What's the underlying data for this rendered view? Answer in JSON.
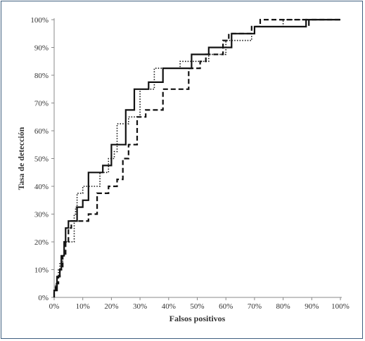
{
  "chart_data": {
    "type": "line",
    "title": "",
    "xlabel": "Falsos positivos",
    "ylabel": "Tasa de detección",
    "xlim": [
      0,
      100
    ],
    "ylim": [
      0,
      100
    ],
    "x_tick_labels": [
      "0%",
      "10%",
      "20%",
      "30%",
      "40%",
      "50%",
      "60%",
      "70%",
      "80%",
      "90%",
      "100%"
    ],
    "y_tick_labels": [
      "0%",
      "10%",
      "20%",
      "30%",
      "40%",
      "50%",
      "60%",
      "70%",
      "80%",
      "90%",
      "100%"
    ],
    "grid": false,
    "legend": "none",
    "series": [
      {
        "style": "solid",
        "points": [
          [
            0,
            0
          ],
          [
            0,
            2.5
          ],
          [
            1,
            2.5
          ],
          [
            1,
            5
          ],
          [
            1,
            7.5
          ],
          [
            2,
            7.5
          ],
          [
            2,
            10
          ],
          [
            2.5,
            10
          ],
          [
            2.5,
            12.5
          ],
          [
            2.5,
            15
          ],
          [
            3.5,
            15
          ],
          [
            3.5,
            17.5
          ],
          [
            3.5,
            20
          ],
          [
            4,
            20
          ],
          [
            4,
            22.5
          ],
          [
            4,
            25
          ],
          [
            5,
            25
          ],
          [
            5,
            27.5
          ],
          [
            8,
            27.5
          ],
          [
            8,
            30
          ],
          [
            8,
            32.5
          ],
          [
            10,
            32.5
          ],
          [
            10,
            35
          ],
          [
            12,
            35
          ],
          [
            12,
            37.5
          ],
          [
            12,
            40
          ],
          [
            12,
            42.5
          ],
          [
            12,
            45
          ],
          [
            17,
            45
          ],
          [
            17,
            47.5
          ],
          [
            20,
            47.5
          ],
          [
            20,
            50
          ],
          [
            20,
            52.5
          ],
          [
            20,
            55
          ],
          [
            25,
            55
          ],
          [
            25,
            57.5
          ],
          [
            25,
            60
          ],
          [
            25,
            62.5
          ],
          [
            25,
            65
          ],
          [
            25,
            67.5
          ],
          [
            28,
            67.5
          ],
          [
            28,
            70
          ],
          [
            28,
            72.5
          ],
          [
            28,
            75
          ],
          [
            33,
            75
          ],
          [
            33,
            77.5
          ],
          [
            35,
            77.5
          ],
          [
            38,
            77.5
          ],
          [
            38,
            80
          ],
          [
            38,
            82.5
          ],
          [
            48,
            82.5
          ],
          [
            48,
            85
          ],
          [
            48,
            87.5
          ],
          [
            54,
            87.5
          ],
          [
            54,
            90
          ],
          [
            58,
            90
          ],
          [
            62,
            90
          ],
          [
            62,
            92.5
          ],
          [
            62,
            95
          ],
          [
            70,
            95
          ],
          [
            70,
            97.5
          ],
          [
            88,
            97.5
          ],
          [
            88,
            100
          ],
          [
            100,
            100
          ]
        ]
      },
      {
        "style": "dotted",
        "points": [
          [
            0,
            0
          ],
          [
            0,
            2.5
          ],
          [
            0.5,
            2.5
          ],
          [
            0.5,
            5
          ],
          [
            1,
            5
          ],
          [
            1,
            7.5
          ],
          [
            1.5,
            7.5
          ],
          [
            1.5,
            10
          ],
          [
            2,
            10
          ],
          [
            2,
            12.5
          ],
          [
            3,
            12.5
          ],
          [
            3,
            15
          ],
          [
            3.5,
            15
          ],
          [
            3.5,
            17.5
          ],
          [
            3.5,
            20
          ],
          [
            7,
            20
          ],
          [
            7,
            22.5
          ],
          [
            7,
            25
          ],
          [
            7,
            27.5
          ],
          [
            7,
            30
          ],
          [
            7.5,
            30
          ],
          [
            7.5,
            32.5
          ],
          [
            8,
            32.5
          ],
          [
            8,
            35
          ],
          [
            8,
            37.5
          ],
          [
            10,
            37.5
          ],
          [
            10,
            40
          ],
          [
            16,
            40
          ],
          [
            16,
            42.5
          ],
          [
            16,
            45
          ],
          [
            19,
            45
          ],
          [
            19,
            47.5
          ],
          [
            19,
            50
          ],
          [
            21,
            50
          ],
          [
            21,
            52.5
          ],
          [
            22,
            52.5
          ],
          [
            22,
            55
          ],
          [
            22,
            57.5
          ],
          [
            22,
            60
          ],
          [
            22,
            62.5
          ],
          [
            26,
            62.5
          ],
          [
            26,
            65
          ],
          [
            30,
            65
          ],
          [
            30,
            67.5
          ],
          [
            30,
            70
          ],
          [
            30,
            72.5
          ],
          [
            30,
            75
          ],
          [
            35,
            75
          ],
          [
            35,
            77.5
          ],
          [
            35,
            80
          ],
          [
            35,
            82.5
          ],
          [
            44,
            82.5
          ],
          [
            44,
            85
          ],
          [
            54,
            85
          ],
          [
            54,
            87.5
          ],
          [
            60,
            87.5
          ],
          [
            60,
            90
          ],
          [
            60,
            92.5
          ],
          [
            64,
            92.5
          ],
          [
            69,
            92.5
          ],
          [
            69,
            95
          ],
          [
            70,
            95
          ],
          [
            70,
            97.5
          ],
          [
            80,
            97.5
          ],
          [
            80,
            100
          ],
          [
            100,
            100
          ]
        ]
      },
      {
        "style": "dashed",
        "points": [
          [
            0,
            0
          ],
          [
            0,
            2.5
          ],
          [
            0.5,
            2.5
          ],
          [
            0.5,
            5
          ],
          [
            1.5,
            5
          ],
          [
            1.5,
            7.5
          ],
          [
            2,
            7.5
          ],
          [
            2,
            10
          ],
          [
            3,
            10
          ],
          [
            3,
            12.5
          ],
          [
            3,
            15
          ],
          [
            4,
            15
          ],
          [
            4,
            17.5
          ],
          [
            4,
            20
          ],
          [
            5,
            20
          ],
          [
            5,
            22.5
          ],
          [
            5,
            25
          ],
          [
            6,
            25
          ],
          [
            6,
            27.5
          ],
          [
            12,
            27.5
          ],
          [
            12,
            30
          ],
          [
            15,
            30
          ],
          [
            15,
            32.5
          ],
          [
            15,
            35
          ],
          [
            15,
            37.5
          ],
          [
            19,
            37.5
          ],
          [
            19,
            40
          ],
          [
            22,
            40
          ],
          [
            22,
            42.5
          ],
          [
            24,
            42.5
          ],
          [
            24,
            45
          ],
          [
            24,
            47.5
          ],
          [
            24,
            50
          ],
          [
            26,
            50
          ],
          [
            26,
            52.5
          ],
          [
            26,
            55
          ],
          [
            29,
            55
          ],
          [
            29,
            57.5
          ],
          [
            29,
            60
          ],
          [
            29,
            62.5
          ],
          [
            29,
            65
          ],
          [
            32,
            65
          ],
          [
            32,
            67.5
          ],
          [
            38,
            67.5
          ],
          [
            38,
            70
          ],
          [
            38,
            72.5
          ],
          [
            38,
            75
          ],
          [
            47,
            75
          ],
          [
            47,
            77.5
          ],
          [
            47,
            80
          ],
          [
            47,
            82.5
          ],
          [
            51,
            82.5
          ],
          [
            51,
            85
          ],
          [
            53,
            85
          ],
          [
            53,
            87.5
          ],
          [
            59,
            87.5
          ],
          [
            59,
            90
          ],
          [
            59,
            92.5
          ],
          [
            61,
            92.5
          ],
          [
            61,
            95
          ],
          [
            69,
            95
          ],
          [
            69,
            97.5
          ],
          [
            72,
            97.5
          ],
          [
            72,
            100
          ],
          [
            89,
            100
          ],
          [
            89,
            97.5
          ],
          [
            89,
            100
          ],
          [
            100,
            100
          ]
        ]
      }
    ]
  }
}
